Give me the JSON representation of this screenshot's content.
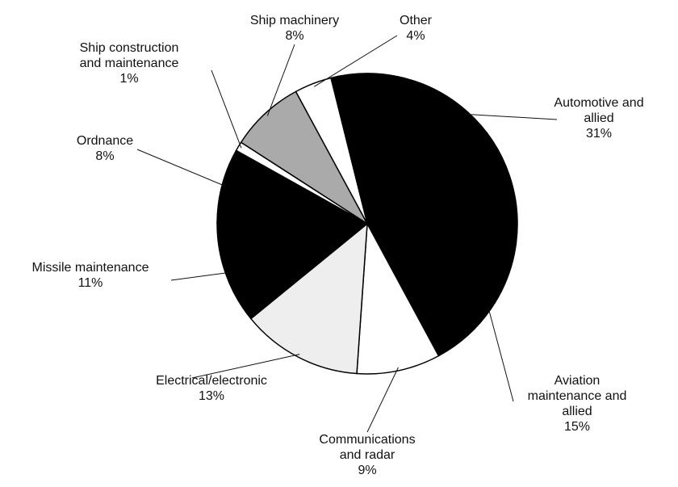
{
  "chart_data": {
    "type": "pie",
    "categories": [
      "Automotive and allied",
      "Aviation maintenance and allied",
      "Communications and radar",
      "Electrical/electronic",
      "Missile maintenance",
      "Ordnance",
      "Ship construction and maintenance",
      "Ship machinery",
      "Other"
    ],
    "values": [
      31,
      15,
      9,
      13,
      11,
      8,
      1,
      8,
      4
    ],
    "value_labels": [
      "31%",
      "15%",
      "9%",
      "13%",
      "11%",
      "8%",
      "1%",
      "8%",
      "4%"
    ],
    "colors": [
      "#000000",
      "#000000",
      "#ffffff",
      "#eeeeee",
      "#000000",
      "#000000",
      "#ffffff",
      "#aaaaaa",
      "#ffffff"
    ]
  }
}
